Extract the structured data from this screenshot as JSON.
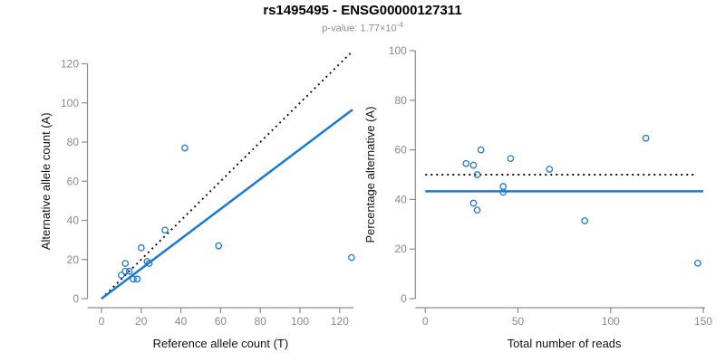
{
  "header": {
    "title": "rs1495495 - ENSG00000127311",
    "pvalue_prefix": "p-value: 1.77×10",
    "pvalue_exponent": "-4"
  },
  "colors": {
    "accent_blue": "#1d78d2",
    "dashed_black": "#111111",
    "axis_line_gray": "#8c8c8c",
    "tick_label_gray": "#8a8a8a",
    "axis_title_color": "#111111",
    "background": "#ffffff"
  },
  "chart_data": [
    {
      "type": "scatter",
      "name": "allele-counts-panel",
      "xlabel": "Reference allele count (T)",
      "ylabel": "Alternative allele count (A)",
      "xlim": [
        0,
        126
      ],
      "ylim": [
        0,
        126
      ],
      "xticks": [
        0,
        20,
        40,
        60,
        80,
        100,
        120
      ],
      "yticks": [
        0,
        20,
        40,
        60,
        80,
        100,
        120
      ],
      "grid": false,
      "legend": false,
      "points": [
        [
          10,
          12
        ],
        [
          12,
          14
        ],
        [
          14,
          14
        ],
        [
          12,
          18
        ],
        [
          16,
          10
        ],
        [
          18,
          10
        ],
        [
          20,
          26
        ],
        [
          23,
          19
        ],
        [
          24,
          18
        ],
        [
          32,
          35
        ],
        [
          42,
          77
        ],
        [
          59,
          27
        ],
        [
          126,
          21
        ]
      ],
      "lines": [
        {
          "name": "expected-identity-line",
          "style": "dotted",
          "color": "#111111",
          "x1": 0,
          "y1": 0,
          "x2": 126,
          "y2": 126
        },
        {
          "name": "fitted-ratio-line",
          "style": "solid",
          "color": "#1d78d2",
          "x1": 0,
          "y1": 0,
          "x2": 126.5,
          "y2": 96.6
        }
      ]
    },
    {
      "type": "scatter",
      "name": "percentage-alternative-panel",
      "xlabel": "Total number of reads",
      "ylabel": "Percentage alternative (A)",
      "xlim": [
        0,
        150
      ],
      "ylim": [
        0,
        100
      ],
      "xticks": [
        0,
        50,
        100,
        150
      ],
      "yticks": [
        0,
        20,
        40,
        60,
        80,
        100
      ],
      "grid": false,
      "legend": false,
      "points": [
        [
          22,
          54.5
        ],
        [
          26,
          53.8
        ],
        [
          28,
          50.0
        ],
        [
          30,
          60.0
        ],
        [
          26,
          38.5
        ],
        [
          28,
          35.7
        ],
        [
          46,
          56.5
        ],
        [
          42,
          45.2
        ],
        [
          42,
          42.9
        ],
        [
          67,
          52.2
        ],
        [
          119,
          64.7
        ],
        [
          86,
          31.4
        ],
        [
          147,
          14.3
        ]
      ],
      "lines": [
        {
          "name": "expected-50pct-line",
          "style": "dotted",
          "color": "#111111",
          "x1": 0,
          "y1": 50,
          "x2": 146,
          "y2": 50
        },
        {
          "name": "mean-percentage-line",
          "style": "solid",
          "color": "#1d78d2",
          "x1": 0,
          "y1": 43.3,
          "x2": 150,
          "y2": 43.3
        }
      ]
    }
  ]
}
